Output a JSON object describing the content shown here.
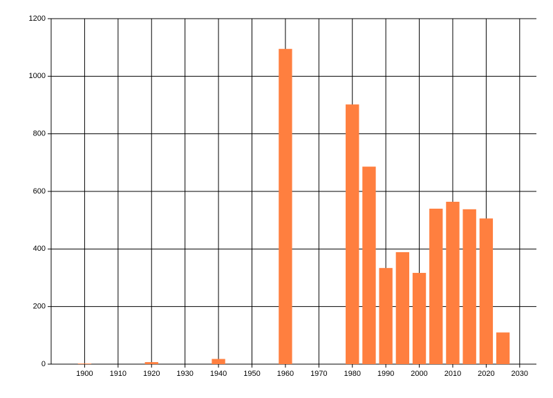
{
  "chart_data": {
    "type": "bar",
    "x": [
      1900,
      1920,
      1940,
      1960,
      1980,
      1985,
      1990,
      1995,
      2000,
      2005,
      2010,
      2015,
      2020,
      2025
    ],
    "values": [
      2,
      7,
      18,
      1095,
      902,
      686,
      334,
      389,
      317,
      540,
      564,
      538,
      506,
      110
    ],
    "color": "#ff7f3f",
    "xlim": [
      1890,
      2035
    ],
    "xticks": [
      1900,
      1910,
      1920,
      1930,
      1940,
      1950,
      1960,
      1970,
      1980,
      1990,
      2000,
      2010,
      2020,
      2030
    ],
    "ylim": [
      0,
      1200
    ],
    "yticks": [
      0,
      200,
      400,
      600,
      800,
      1000,
      1200
    ],
    "grid": true
  }
}
